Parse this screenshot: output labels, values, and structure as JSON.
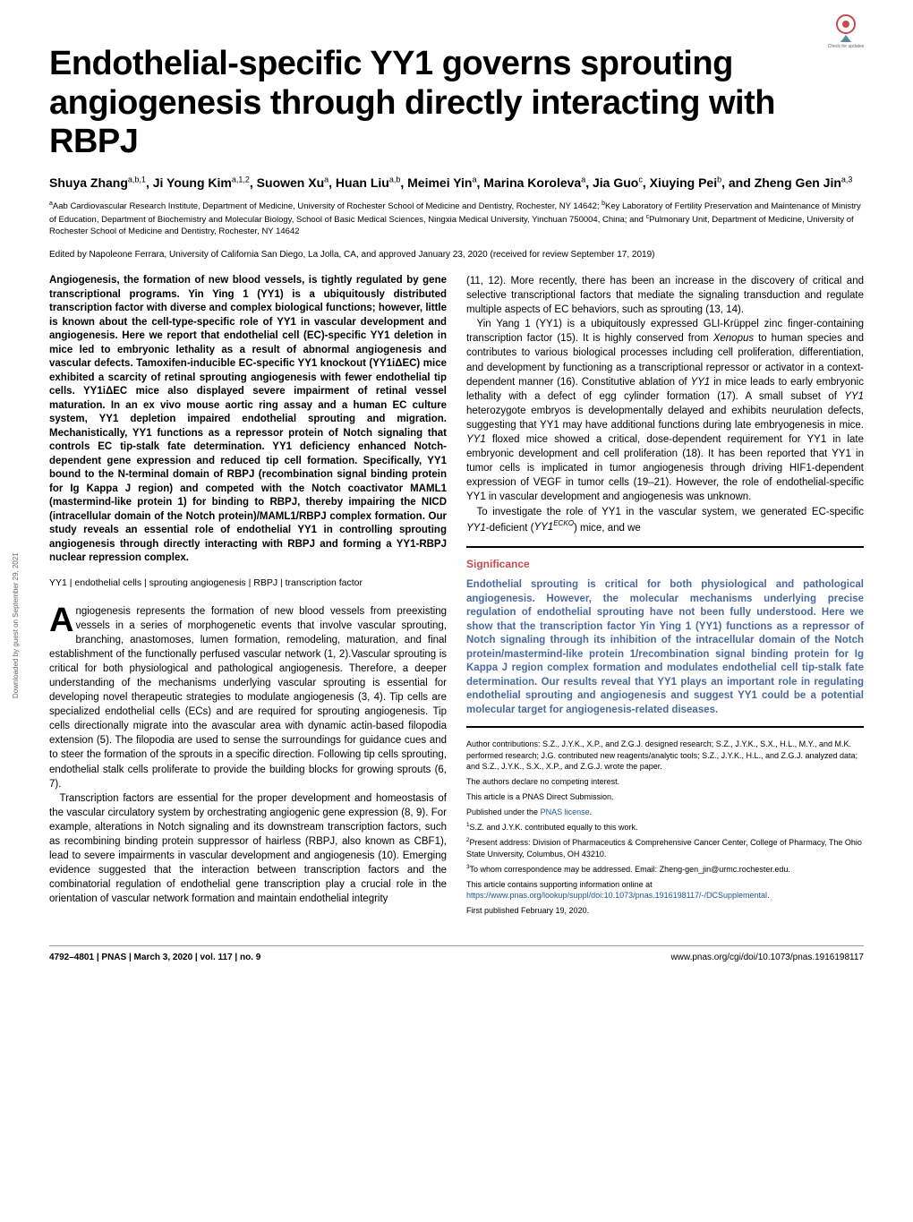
{
  "badge": {
    "label": "Check for updates"
  },
  "title": "Endothelial-specific YY1 governs sprouting angiogenesis through directly interacting with RBPJ",
  "authors_html": "Shuya Zhang<sup>a,b,1</sup>, Ji Young Kim<sup>a,1,2</sup>, Suowen Xu<sup>a</sup>, Huan Liu<sup>a,b</sup>, Meimei Yin<sup>a</sup>, Marina Koroleva<sup>a</sup>, Jia Guo<sup>c</sup>, Xiuying Pei<sup>b</sup>, and Zheng Gen Jin<sup>a,3</sup>",
  "affiliations_html": "<sup>a</sup>Aab Cardiovascular Research Institute, Department of Medicine, University of Rochester School of Medicine and Dentistry, Rochester, NY 14642; <sup>b</sup>Key Laboratory of Fertility Preservation and Maintenance of Ministry of Education, Department of Biochemistry and Molecular Biology, School of Basic Medical Sciences, Ningxia Medical University, Yinchuan 750004, China; and <sup>c</sup>Pulmonary Unit, Department of Medicine, University of Rochester School of Medicine and Dentistry, Rochester, NY 14642",
  "editor_line": "Edited by Napoleone Ferrara, University of California San Diego, La Jolla, CA, and approved January 23, 2020 (received for review September 17, 2019)",
  "abstract": "Angiogenesis, the formation of new blood vessels, is tightly regulated by gene transcriptional programs. Yin Ying 1 (YY1) is a ubiquitously distributed transcription factor with diverse and complex biological functions; however, little is known about the cell-type-specific role of YY1 in vascular development and angiogenesis. Here we report that endothelial cell (EC)-specific YY1 deletion in mice led to embryonic lethality as a result of abnormal angiogenesis and vascular defects. Tamoxifen-inducible EC-specific YY1 knockout (YY1iΔEC) mice exhibited a scarcity of retinal sprouting angiogenesis with fewer endothelial tip cells. YY1iΔEC mice also displayed severe impairment of retinal vessel maturation. In an ex vivo mouse aortic ring assay and a human EC culture system, YY1 depletion impaired endothelial sprouting and migration. Mechanistically, YY1 functions as a repressor protein of Notch signaling that controls EC tip-stalk fate determination. YY1 deficiency enhanced Notch-dependent gene expression and reduced tip cell formation. Specifically, YY1 bound to the N-terminal domain of RBPJ (recombination signal binding protein for Ig Kappa J region) and competed with the Notch coactivator MAML1 (mastermind-like protein 1) for binding to RBPJ, thereby impairing the NICD (intracellular domain of the Notch protein)/MAML1/RBPJ complex formation. Our study reveals an essential role of endothelial YY1 in controlling sprouting angiogenesis through directly interacting with RBPJ and forming a YY1-RBPJ nuclear repression complex.",
  "keywords": "YY1 | endothelial cells | sprouting angiogenesis | RBPJ | transcription factor",
  "body": {
    "dropcap": "A",
    "p1": "ngiogenesis represents the formation of new blood vessels from preexisting vessels in a series of morphogenetic events that involve vascular sprouting, branching, anastomoses, lumen formation, remodeling, maturation, and final establishment of the functionally perfused vascular network (1, 2).Vascular sprouting is critical for both physiological and pathological angiogenesis. Therefore, a deeper understanding of the mechanisms underlying vascular sprouting is essential for developing novel therapeutic strategies to modulate angiogenesis (3, 4). Tip cells are specialized endothelial cells (ECs) and are required for sprouting angiogenesis. Tip cells directionally migrate into the avascular area with dynamic actin-based filopodia extension (5). The filopodia are used to sense the surroundings for guidance cues and to steer the formation of the sprouts in a specific direction. Following tip cells sprouting, endothelial stalk cells proliferate to provide the building blocks for growing sprouts (6, 7).",
    "p2": "Transcription factors are essential for the proper development and homeostasis of the vascular circulatory system by orchestrating angiogenic gene expression (8, 9). For example, alterations in Notch signaling and its downstream transcription factors, such as recombining binding protein suppressor of hairless (RBPJ, also known as CBF1), lead to severe impairments in vascular development and angiogenesis (10). Emerging evidence suggested that the interaction between transcription factors and the combinatorial regulation of endothelial gene transcription play a crucial role in the orientation of vascular network formation and maintain endothelial integrity",
    "p3": "(11, 12). More recently, there has been an increase in the discovery of critical and selective transcriptional factors that mediate the signaling transduction and regulate multiple aspects of EC behaviors, such as sprouting (13, 14).",
    "p4_html": "Yin Yang 1 (YY1) is a ubiquitously expressed GLI-Krüppel zinc finger-containing transcription factor (15). It is highly conserved from <i>Xenopus</i> to human species and contributes to various biological processes including cell proliferation, differentiation, and development by functioning as a transcriptional repressor or activator in a context-dependent manner (16). Constitutive ablation of <i>YY1</i> in mice leads to early embryonic lethality with a defect of egg cylinder formation (17). A small subset of <i>YY1</i> heterozygote embryos is developmentally delayed and exhibits neurulation defects, suggesting that YY1 may have additional functions during late embryogenesis in mice. <i>YY1</i> floxed mice showed a critical, dose-dependent requirement for YY1 in late embryonic development and cell proliferation (18). It has been reported that YY1 in tumor cells is implicated in tumor angiogenesis through driving HIF1-dependent expression of VEGF in tumor cells (19–21). However, the role of endothelial-specific YY1 in vascular development and angiogenesis was unknown.",
    "p5_html": "To investigate the role of YY1 in the vascular system, we generated EC-specific <i>YY1</i>-deficient (<i>YY1<sup>ECKO</sup></i>) mice, and we"
  },
  "significance": {
    "heading": "Significance",
    "text": "Endothelial sprouting is critical for both physiological and pathological angiogenesis. However, the molecular mechanisms underlying precise regulation of endothelial sprouting have not been fully understood. Here we show that the transcription factor Yin Ying 1 (YY1) functions as a repressor of Notch signaling through its inhibition of the intracellular domain of the Notch protein/mastermind-like protein 1/recombination signal binding protein for Ig Kappa J region complex formation and modulates endothelial cell tip-stalk fate determination. Our results reveal that YY1 plays an important role in regulating endothelial sprouting and angiogenesis and suggest YY1 could be a potential molecular target for angiogenesis-related diseases."
  },
  "footnotes": {
    "contributions": "Author contributions: S.Z., J.Y.K., X.P., and Z.G.J. designed research; S.Z., J.Y.K., S.X., H.L., M.Y., and M.K. performed research; J.G. contributed new reagents/analytic tools; S.Z., J.Y.K., H.L., and Z.G.J. analyzed data; and S.Z., J.Y.K., S.X., X.P., and Z.G.J. wrote the paper.",
    "competing": "The authors declare no competing interest.",
    "submission": "This article is a PNAS Direct Submission.",
    "license_pre": "Published under the ",
    "license_link": "PNAS license",
    "license_post": ".",
    "n1": "S.Z. and J.Y.K. contributed equally to this work.",
    "n2": "Present address: Division of Pharmaceutics & Comprehensive Cancer Center, College of Pharmacy, The Ohio State University, Columbus, OH 43210.",
    "n3": "To whom correspondence may be addressed. Email: Zheng-gen_jin@urmc.rochester.edu.",
    "supp_pre": "This article contains supporting information online at ",
    "supp_link": "https://www.pnas.org/lookup/suppl/doi:10.1073/pnas.1916198117/-/DCSupplemental",
    "supp_post": ".",
    "firstpub": "First published February 19, 2020."
  },
  "footer": {
    "left": "4792–4801  |  PNAS  |  March 3, 2020  |  vol. 117  |  no. 9",
    "right": "www.pnas.org/cgi/doi/10.1073/pnas.1916198117"
  },
  "sidebar_text": "Downloaded by guest on September 29, 2021",
  "colors": {
    "sig_heading": "#c94a4a",
    "sig_text": "#4a6a9e",
    "link": "#1a5490"
  }
}
